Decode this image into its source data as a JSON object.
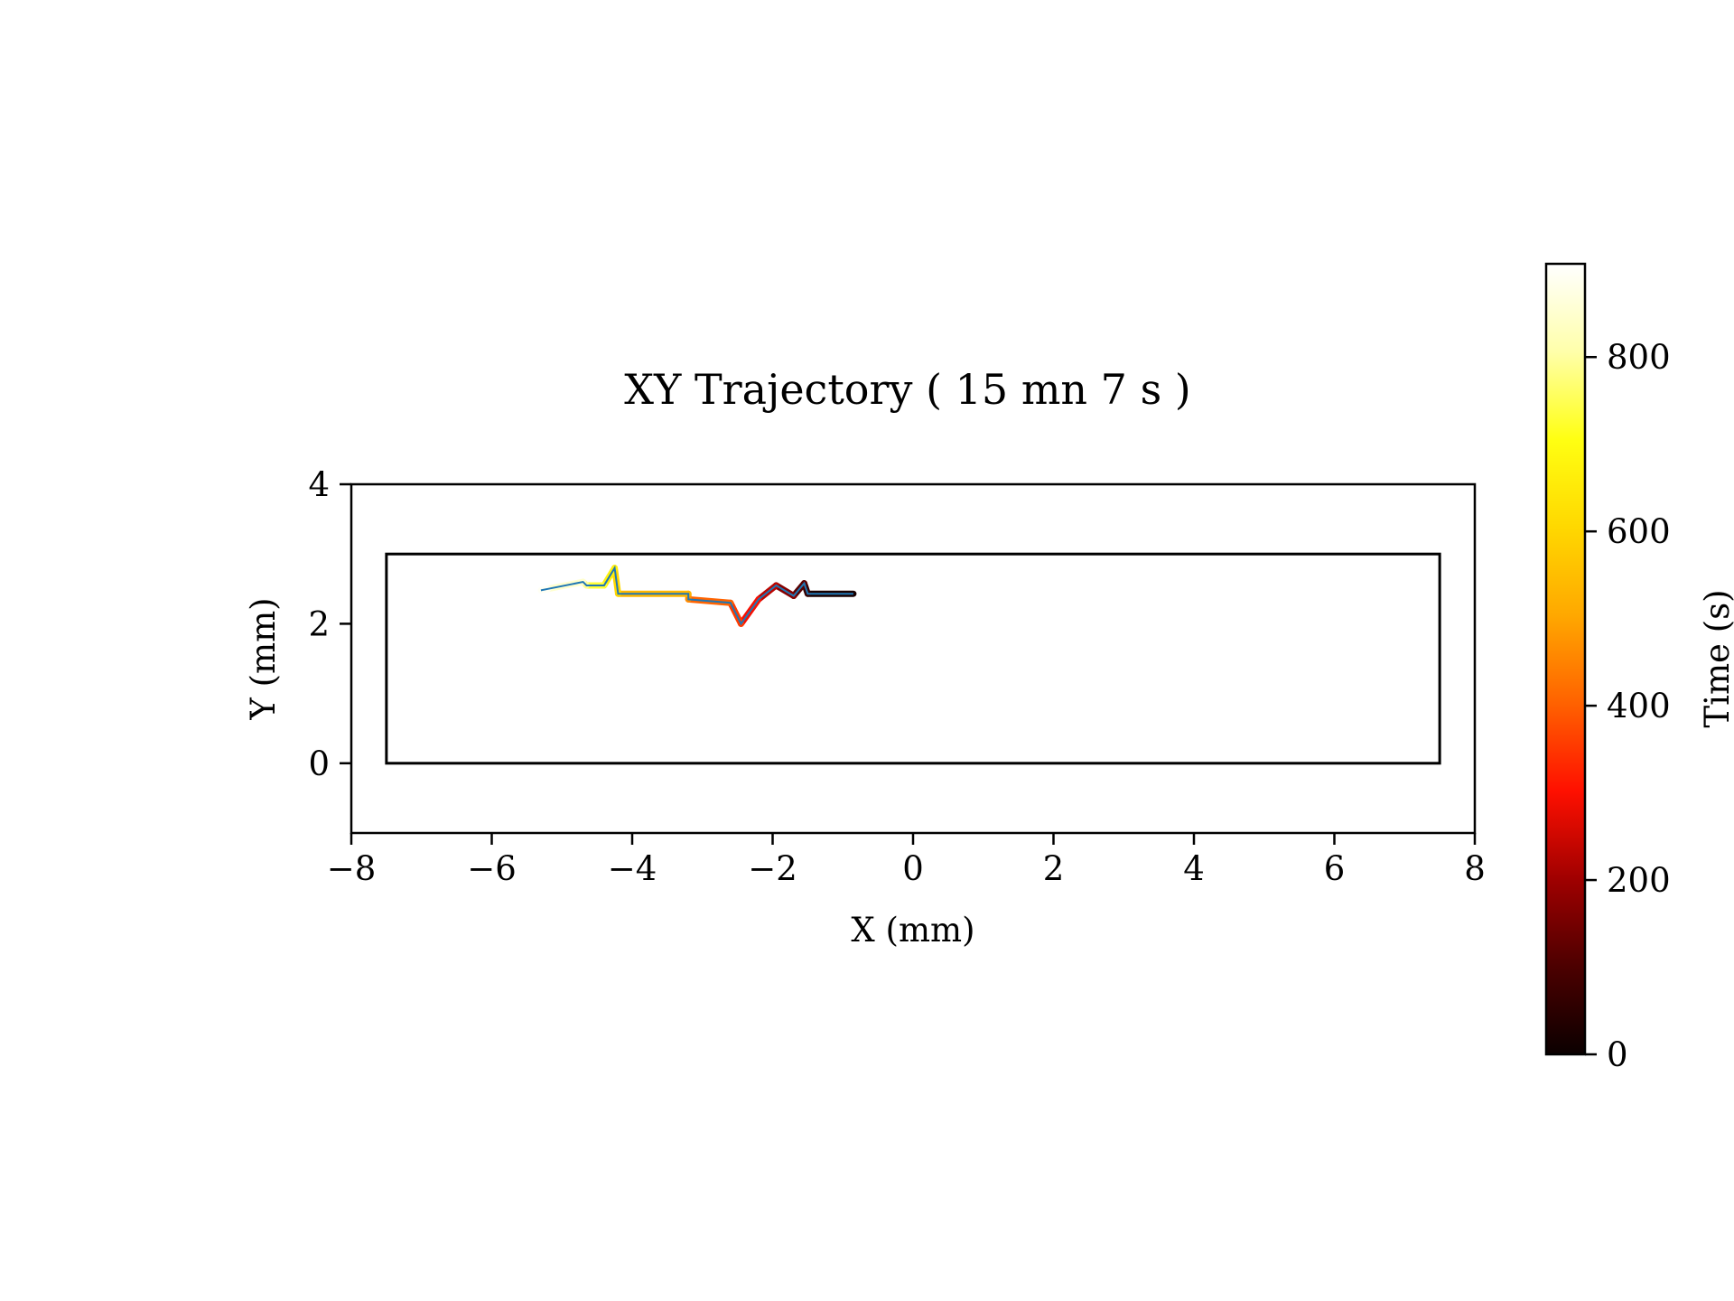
{
  "chart_data": {
    "type": "line",
    "title": "XY Trajectory ( 15 mn 7 s )",
    "xlabel": "X (mm)",
    "ylabel": "Y (mm)",
    "xlim": [
      -8,
      8
    ],
    "ylim": [
      -1,
      4
    ],
    "xticks": [
      -8,
      -6,
      -4,
      -2,
      0,
      2,
      4,
      6,
      8
    ],
    "xtick_labels": [
      "−8",
      "−6",
      "−4",
      "−2",
      "0",
      "2",
      "4",
      "6",
      "8"
    ],
    "yticks": [
      0,
      2,
      4
    ],
    "ytick_labels": [
      "0",
      "2",
      "4"
    ],
    "grid": false,
    "arena": {
      "x": [
        -7.5,
        7.5
      ],
      "y": [
        0,
        3
      ]
    },
    "trajectory": {
      "line_color": "#1f77b4",
      "time_s": [
        0,
        40,
        90,
        140,
        200,
        260,
        330,
        380,
        430,
        500,
        570,
        640,
        700,
        760,
        820,
        880,
        907
      ],
      "points": [
        [
          -0.85,
          2.43
        ],
        [
          -1.5,
          2.43
        ],
        [
          -1.55,
          2.58
        ],
        [
          -1.7,
          2.4
        ],
        [
          -1.95,
          2.55
        ],
        [
          -2.2,
          2.35
        ],
        [
          -2.45,
          2.0
        ],
        [
          -2.6,
          2.3
        ],
        [
          -3.2,
          2.35
        ],
        [
          -3.2,
          2.43
        ],
        [
          -4.2,
          2.43
        ],
        [
          -4.25,
          2.8
        ],
        [
          -4.4,
          2.55
        ],
        [
          -4.65,
          2.55
        ],
        [
          -4.7,
          2.6
        ],
        [
          -5.2,
          2.5
        ],
        [
          -5.3,
          2.48
        ]
      ]
    },
    "colorbar": {
      "label": "Time (s)",
      "colormap": "hot",
      "range": [
        0,
        907
      ],
      "ticks": [
        0,
        200,
        400,
        600,
        800
      ],
      "tick_labels": [
        "0",
        "200",
        "400",
        "600",
        "800"
      ],
      "colors": [
        "#0b0000",
        "#4c0000",
        "#a00000",
        "#ff1000",
        "#ff6200",
        "#ffa800",
        "#ffd800",
        "#ffff12",
        "#ffffaa",
        "#ffffff"
      ]
    }
  }
}
